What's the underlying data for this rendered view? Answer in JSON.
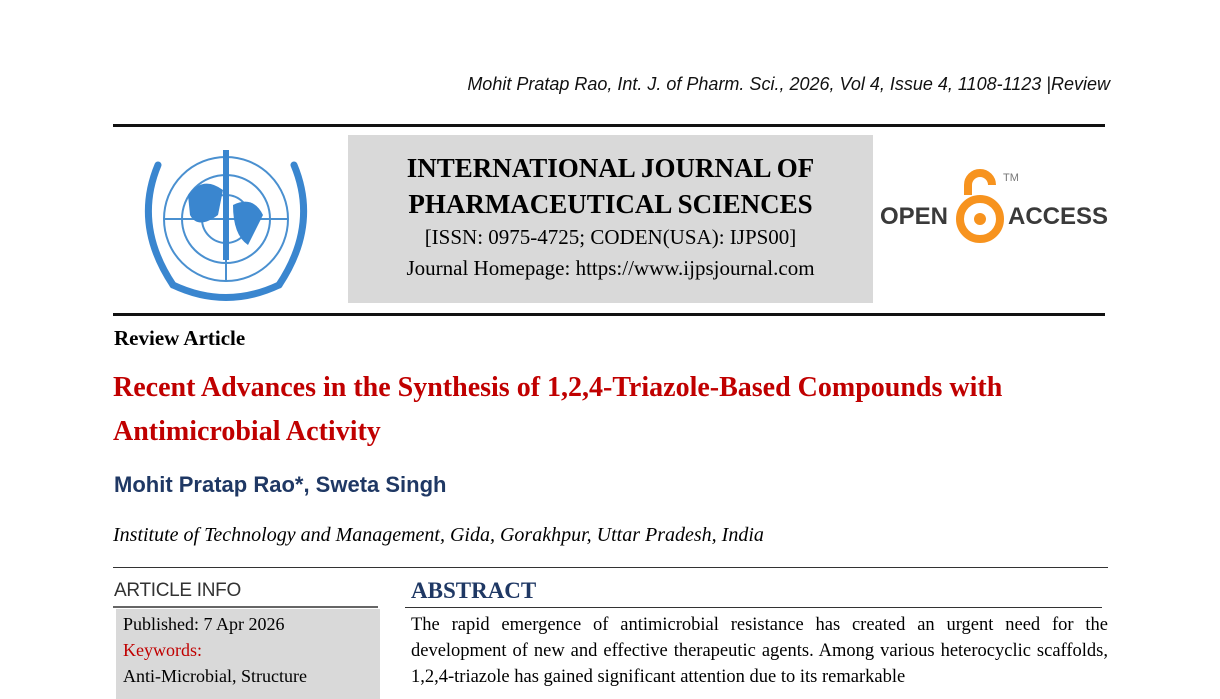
{
  "header": {
    "citation": "Mohit Pratap Rao, Int. J. of Pharm. Sci., 2026, Vol 4, Issue 4, 1108-1123 |Review"
  },
  "journal": {
    "title_line1": "INTERNATIONAL JOURNAL OF",
    "title_line2": "PHARMACEUTICAL SCIENCES",
    "issn": "[ISSN: 0975-4725; CODEN(USA): IJPS00]",
    "homepage": "Journal Homepage: https://www.ijpsjournal.com",
    "logo_icon": "un-emblem-caduceus-logo",
    "open_access": {
      "left": "OPEN",
      "right": "ACCESS",
      "tm": "TM",
      "color": "#f7931e"
    }
  },
  "article": {
    "type": "Review Article",
    "title": "Recent Advances in the Synthesis of 1,2,4-Triazole-Based Compounds with Antimicrobial Activity",
    "authors": "Mohit Pratap Rao*, Sweta Singh",
    "affiliation": "Institute of Technology and Management, Gida, Gorakhpur, Uttar Pradesh, India"
  },
  "article_info": {
    "heading": "ARTICLE INFO",
    "published": "Published:  7 Apr 2026",
    "keywords_label": "Keywords:",
    "keywords": "Anti-Microbial, Structure"
  },
  "abstract": {
    "heading": "ABSTRACT",
    "text": "The rapid emergence of antimicrobial resistance has created an urgent need for the development of new and effective therapeutic agents. Among various heterocyclic scaffolds, 1,2,4-triazole has gained significant attention due to its remarkable"
  },
  "colors": {
    "title_red": "#c00000",
    "navy": "#1f3864",
    "box_gray": "#d9d9d9"
  }
}
